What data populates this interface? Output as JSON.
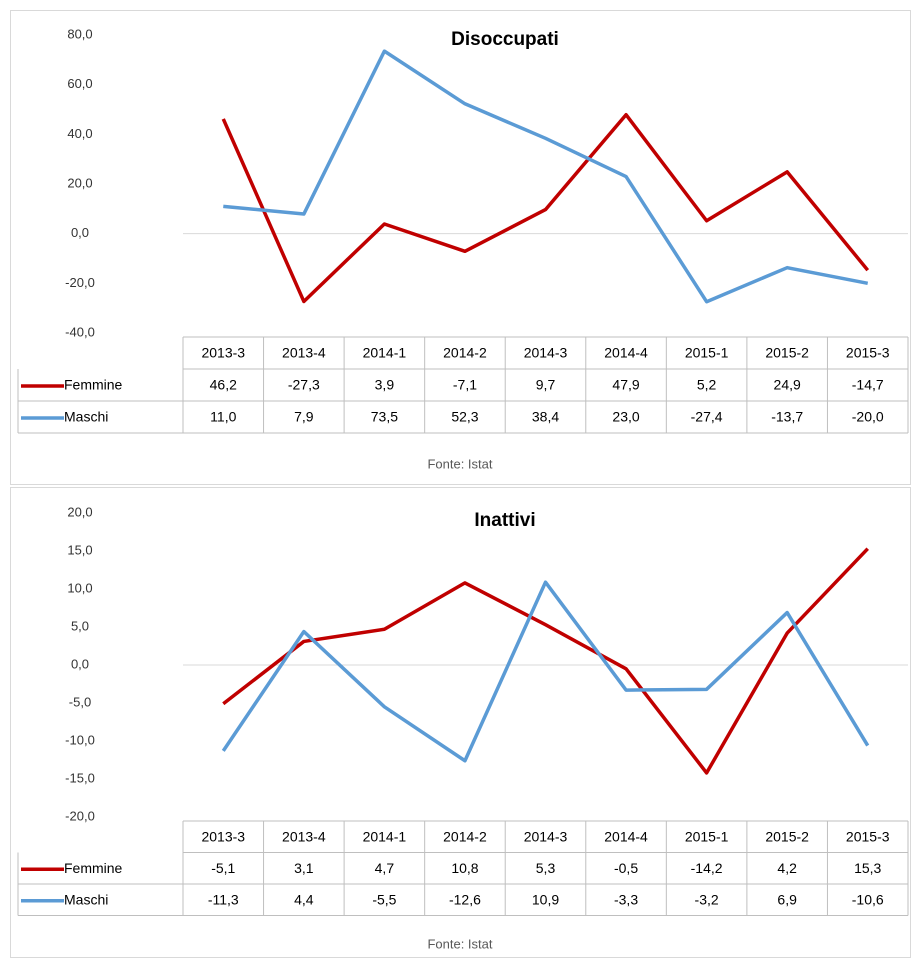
{
  "chart_data": [
    {
      "type": "line",
      "title": "Disoccupati",
      "source": "Fonte: Istat",
      "categories": [
        "2013-3",
        "2013-4",
        "2014-1",
        "2014-2",
        "2014-3",
        "2014-4",
        "2015-1",
        "2015-2",
        "2015-3"
      ],
      "series": [
        {
          "name": "Femmine",
          "color": "#c00000",
          "values": [
            46.2,
            -27.3,
            3.9,
            -7.1,
            9.7,
            47.9,
            5.2,
            24.9,
            -14.7
          ],
          "value_labels": [
            "46,2",
            "-27,3",
            "3,9",
            "-7,1",
            "9,7",
            "47,9",
            "5,2",
            "24,9",
            "-14,7"
          ]
        },
        {
          "name": "Maschi",
          "color": "#5b9bd5",
          "values": [
            11.0,
            7.9,
            73.5,
            52.3,
            38.4,
            23.0,
            -27.4,
            -13.7,
            -20.0
          ],
          "value_labels": [
            "11,0",
            "7,9",
            "73,5",
            "52,3",
            "38,4",
            "23,0",
            "-27,4",
            "-13,7",
            "-20,0"
          ]
        }
      ],
      "ylim": [
        -40,
        80
      ],
      "yticks": [
        {
          "value": -40,
          "label": "-40,0"
        },
        {
          "value": -20,
          "label": "-20,0"
        },
        {
          "value": 0,
          "label": "0,0"
        },
        {
          "value": 20,
          "label": "20,0"
        },
        {
          "value": 40,
          "label": "40,0"
        },
        {
          "value": 60,
          "label": "60,0"
        },
        {
          "value": 80,
          "label": "80,0"
        }
      ]
    },
    {
      "type": "line",
      "title": "Inattivi",
      "source": "Fonte: Istat",
      "categories": [
        "2013-3",
        "2013-4",
        "2014-1",
        "2014-2",
        "2014-3",
        "2014-4",
        "2015-1",
        "2015-2",
        "2015-3"
      ],
      "series": [
        {
          "name": "Femmine",
          "color": "#c00000",
          "values": [
            -5.1,
            3.1,
            4.7,
            10.8,
            5.3,
            -0.5,
            -14.2,
            4.2,
            15.3
          ],
          "value_labels": [
            "-5,1",
            "3,1",
            "4,7",
            "10,8",
            "5,3",
            "-0,5",
            "-14,2",
            "4,2",
            "15,3"
          ]
        },
        {
          "name": "Maschi",
          "color": "#5b9bd5",
          "values": [
            -11.3,
            4.4,
            -5.5,
            -12.6,
            10.9,
            -3.3,
            -3.2,
            6.9,
            -10.6
          ],
          "value_labels": [
            "-11,3",
            "4,4",
            "-5,5",
            "-12,6",
            "10,9",
            "-3,3",
            "-3,2",
            "6,9",
            "-10,6"
          ]
        }
      ],
      "ylim": [
        -20,
        20
      ],
      "yticks": [
        {
          "value": -20,
          "label": "-20,0"
        },
        {
          "value": -15,
          "label": "-15,0"
        },
        {
          "value": -10,
          "label": "-10,0"
        },
        {
          "value": -5,
          "label": "-5,0"
        },
        {
          "value": 0,
          "label": "0,0"
        },
        {
          "value": 5,
          "label": "5,0"
        },
        {
          "value": 10,
          "label": "10,0"
        },
        {
          "value": 15,
          "label": "15,0"
        },
        {
          "value": 20,
          "label": "20,0"
        }
      ]
    }
  ]
}
